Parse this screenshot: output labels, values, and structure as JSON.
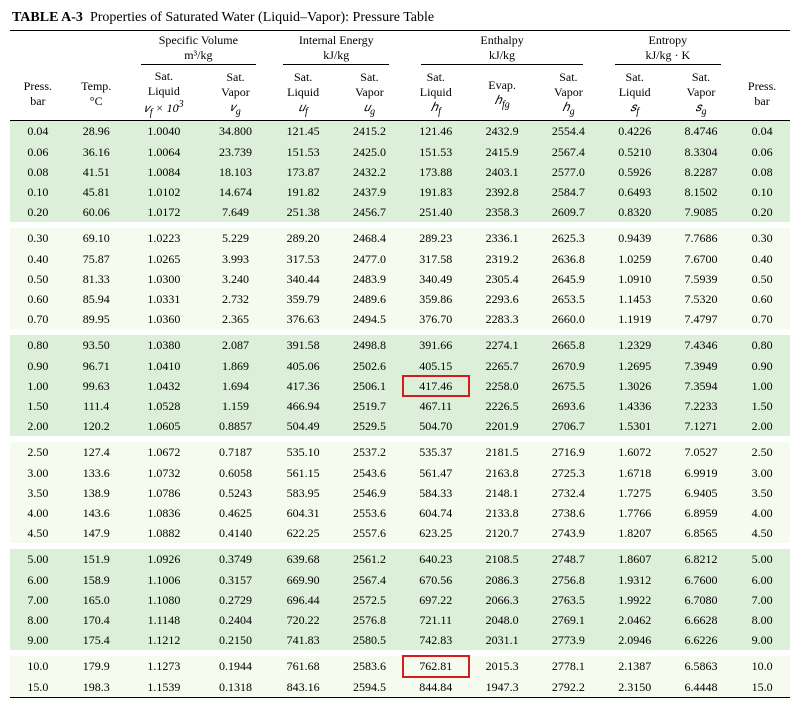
{
  "title_code": "TABLE A-3",
  "title_text": "Properties of Saturated Water (Liquid–Vapor): Pressure Table",
  "colors": {
    "band_even": "#dcefd8",
    "band_odd": "#f5fbef",
    "highlight_border": "#d41e1e",
    "rule": "#000000",
    "text": "#000000",
    "background": "#ffffff"
  },
  "fonts": {
    "family": "Times New Roman",
    "title_size_pt": 11,
    "body_size_pt": 9
  },
  "group_headers": [
    {
      "label": "Specific Volume",
      "unit": "m³/kg",
      "span": 2
    },
    {
      "label": "Internal Energy",
      "unit": "kJ/kg",
      "span": 2
    },
    {
      "label": "Enthalpy",
      "unit": "kJ/kg",
      "span": 3
    },
    {
      "label": "Entropy",
      "unit": "kJ/kg · K",
      "span": 2
    }
  ],
  "leading_cols": [
    {
      "line1": "Press.",
      "line2": "bar",
      "sym": ""
    },
    {
      "line1": "Temp.",
      "line2": "°C",
      "sym": ""
    }
  ],
  "sub_headers": [
    {
      "line1": "Sat.",
      "line2": "Liquid",
      "sym_html": "𝑣<sub>f</sub> × 10<sup>3</sup>"
    },
    {
      "line1": "Sat.",
      "line2": "Vapor",
      "sym_html": "𝑣<sub>g</sub>"
    },
    {
      "line1": "Sat.",
      "line2": "Liquid",
      "sym_html": "𝑢<sub>f</sub>"
    },
    {
      "line1": "Sat.",
      "line2": "Vapor",
      "sym_html": "𝑢<sub>g</sub>"
    },
    {
      "line1": "Sat.",
      "line2": "Liquid",
      "sym_html": "ℎ<sub>f</sub>"
    },
    {
      "line1": "",
      "line2": "Evap.",
      "sym_html": "ℎ<sub>fg</sub>"
    },
    {
      "line1": "Sat.",
      "line2": "Vapor",
      "sym_html": "ℎ<sub>g</sub>"
    },
    {
      "line1": "Sat.",
      "line2": "Liquid",
      "sym_html": "𝑠<sub>f</sub>"
    },
    {
      "line1": "Sat.",
      "line2": "Vapor",
      "sym_html": "𝑠<sub>g</sub>"
    }
  ],
  "trailing_col": {
    "line1": "Press.",
    "line2": "bar",
    "sym": ""
  },
  "groups": [
    [
      [
        "0.04",
        "28.96",
        "1.0040",
        "34.800",
        "121.45",
        "2415.2",
        "121.46",
        "2432.9",
        "2554.4",
        "0.4226",
        "8.4746",
        "0.04"
      ],
      [
        "0.06",
        "36.16",
        "1.0064",
        "23.739",
        "151.53",
        "2425.0",
        "151.53",
        "2415.9",
        "2567.4",
        "0.5210",
        "8.3304",
        "0.06"
      ],
      [
        "0.08",
        "41.51",
        "1.0084",
        "18.103",
        "173.87",
        "2432.2",
        "173.88",
        "2403.1",
        "2577.0",
        "0.5926",
        "8.2287",
        "0.08"
      ],
      [
        "0.10",
        "45.81",
        "1.0102",
        "14.674",
        "191.82",
        "2437.9",
        "191.83",
        "2392.8",
        "2584.7",
        "0.6493",
        "8.1502",
        "0.10"
      ],
      [
        "0.20",
        "60.06",
        "1.0172",
        "7.649",
        "251.38",
        "2456.7",
        "251.40",
        "2358.3",
        "2609.7",
        "0.8320",
        "7.9085",
        "0.20"
      ]
    ],
    [
      [
        "0.30",
        "69.10",
        "1.0223",
        "5.229",
        "289.20",
        "2468.4",
        "289.23",
        "2336.1",
        "2625.3",
        "0.9439",
        "7.7686",
        "0.30"
      ],
      [
        "0.40",
        "75.87",
        "1.0265",
        "3.993",
        "317.53",
        "2477.0",
        "317.58",
        "2319.2",
        "2636.8",
        "1.0259",
        "7.6700",
        "0.40"
      ],
      [
        "0.50",
        "81.33",
        "1.0300",
        "3.240",
        "340.44",
        "2483.9",
        "340.49",
        "2305.4",
        "2645.9",
        "1.0910",
        "7.5939",
        "0.50"
      ],
      [
        "0.60",
        "85.94",
        "1.0331",
        "2.732",
        "359.79",
        "2489.6",
        "359.86",
        "2293.6",
        "2653.5",
        "1.1453",
        "7.5320",
        "0.60"
      ],
      [
        "0.70",
        "89.95",
        "1.0360",
        "2.365",
        "376.63",
        "2494.5",
        "376.70",
        "2283.3",
        "2660.0",
        "1.1919",
        "7.4797",
        "0.70"
      ]
    ],
    [
      [
        "0.80",
        "93.50",
        "1.0380",
        "2.087",
        "391.58",
        "2498.8",
        "391.66",
        "2274.1",
        "2665.8",
        "1.2329",
        "7.4346",
        "0.80"
      ],
      [
        "0.90",
        "96.71",
        "1.0410",
        "1.869",
        "405.06",
        "2502.6",
        "405.15",
        "2265.7",
        "2670.9",
        "1.2695",
        "7.3949",
        "0.90"
      ],
      [
        "1.00",
        "99.63",
        "1.0432",
        "1.694",
        "417.36",
        "2506.1",
        "417.46",
        "2258.0",
        "2675.5",
        "1.3026",
        "7.3594",
        "1.00"
      ],
      [
        "1.50",
        "111.4",
        "1.0528",
        "1.159",
        "466.94",
        "2519.7",
        "467.11",
        "2226.5",
        "2693.6",
        "1.4336",
        "7.2233",
        "1.50"
      ],
      [
        "2.00",
        "120.2",
        "1.0605",
        "0.8857",
        "504.49",
        "2529.5",
        "504.70",
        "2201.9",
        "2706.7",
        "1.5301",
        "7.1271",
        "2.00"
      ]
    ],
    [
      [
        "2.50",
        "127.4",
        "1.0672",
        "0.7187",
        "535.10",
        "2537.2",
        "535.37",
        "2181.5",
        "2716.9",
        "1.6072",
        "7.0527",
        "2.50"
      ],
      [
        "3.00",
        "133.6",
        "1.0732",
        "0.6058",
        "561.15",
        "2543.6",
        "561.47",
        "2163.8",
        "2725.3",
        "1.6718",
        "6.9919",
        "3.00"
      ],
      [
        "3.50",
        "138.9",
        "1.0786",
        "0.5243",
        "583.95",
        "2546.9",
        "584.33",
        "2148.1",
        "2732.4",
        "1.7275",
        "6.9405",
        "3.50"
      ],
      [
        "4.00",
        "143.6",
        "1.0836",
        "0.4625",
        "604.31",
        "2553.6",
        "604.74",
        "2133.8",
        "2738.6",
        "1.7766",
        "6.8959",
        "4.00"
      ],
      [
        "4.50",
        "147.9",
        "1.0882",
        "0.4140",
        "622.25",
        "2557.6",
        "623.25",
        "2120.7",
        "2743.9",
        "1.8207",
        "6.8565",
        "4.50"
      ]
    ],
    [
      [
        "5.00",
        "151.9",
        "1.0926",
        "0.3749",
        "639.68",
        "2561.2",
        "640.23",
        "2108.5",
        "2748.7",
        "1.8607",
        "6.8212",
        "5.00"
      ],
      [
        "6.00",
        "158.9",
        "1.1006",
        "0.3157",
        "669.90",
        "2567.4",
        "670.56",
        "2086.3",
        "2756.8",
        "1.9312",
        "6.7600",
        "6.00"
      ],
      [
        "7.00",
        "165.0",
        "1.1080",
        "0.2729",
        "696.44",
        "2572.5",
        "697.22",
        "2066.3",
        "2763.5",
        "1.9922",
        "6.7080",
        "7.00"
      ],
      [
        "8.00",
        "170.4",
        "1.1148",
        "0.2404",
        "720.22",
        "2576.8",
        "721.11",
        "2048.0",
        "2769.1",
        "2.0462",
        "6.6628",
        "8.00"
      ],
      [
        "9.00",
        "175.4",
        "1.1212",
        "0.2150",
        "741.83",
        "2580.5",
        "742.83",
        "2031.1",
        "2773.9",
        "2.0946",
        "6.6226",
        "9.00"
      ]
    ],
    [
      [
        "10.0",
        "179.9",
        "1.1273",
        "0.1944",
        "761.68",
        "2583.6",
        "762.81",
        "2015.3",
        "2778.1",
        "2.1387",
        "6.5863",
        "10.0"
      ],
      [
        "15.0",
        "198.3",
        "1.1539",
        "0.1318",
        "843.16",
        "2594.5",
        "844.84",
        "1947.3",
        "2792.2",
        "2.3150",
        "6.4448",
        "15.0"
      ]
    ]
  ],
  "highlights": [
    {
      "group": 2,
      "row": 2,
      "col": 6
    },
    {
      "group": 5,
      "row": 0,
      "col": 6
    }
  ]
}
